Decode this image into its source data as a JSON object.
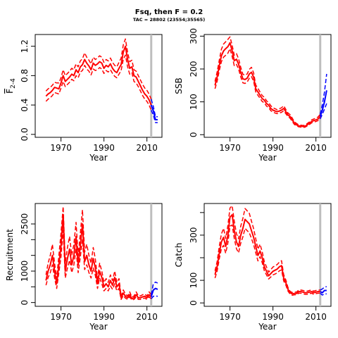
{
  "figure": {
    "title": "Fsq, then F = 0.2",
    "subtitle": "TAC = 28802 (23554;35565)"
  },
  "colors": {
    "historical": "#ff0000",
    "forecast": "#0000ff",
    "divider": "#bebebe"
  },
  "chart_data": [
    {
      "type": "line",
      "ylabel": "F",
      "ylabel_subscript": "2-4",
      "xlabel": "Year",
      "xlim": [
        1958,
        2017
      ],
      "ylim": [
        -0.04,
        1.36
      ],
      "xticks": [
        1970,
        1990,
        2010
      ],
      "yticks": [
        0.0,
        0.4,
        0.8,
        1.2
      ],
      "ytick_labels": [
        "0.0",
        "0.4",
        "0.8",
        "1.2"
      ],
      "divider_year": 2012,
      "series": [
        {
          "role": "historical",
          "x": [
            1963,
            1964,
            1965,
            1966,
            1967,
            1968,
            1969,
            1970,
            1971,
            1972,
            1973,
            1974,
            1975,
            1976,
            1977,
            1978,
            1979,
            1980,
            1981,
            1982,
            1983,
            1984,
            1985,
            1986,
            1987,
            1988,
            1989,
            1990,
            1991,
            1992,
            1993,
            1994,
            1995,
            1996,
            1997,
            1998,
            1999,
            2000,
            2001,
            2002,
            2003,
            2004,
            2005,
            2006,
            2007,
            2008,
            2009,
            2010,
            2011,
            2012
          ],
          "estimate": [
            0.52,
            0.55,
            0.57,
            0.6,
            0.64,
            0.63,
            0.62,
            0.7,
            0.8,
            0.72,
            0.75,
            0.78,
            0.82,
            0.8,
            0.88,
            0.84,
            0.92,
            0.95,
            1.02,
            0.97,
            0.93,
            0.88,
            0.97,
            0.94,
            0.96,
            0.99,
            0.97,
            0.9,
            0.94,
            0.92,
            0.96,
            0.9,
            0.86,
            0.84,
            0.9,
            0.95,
            1.12,
            1.2,
            1.02,
            0.9,
            0.92,
            0.8,
            0.78,
            0.72,
            0.66,
            0.6,
            0.55,
            0.52,
            0.47,
            0.4
          ],
          "lower": [
            0.45,
            0.48,
            0.5,
            0.53,
            0.57,
            0.56,
            0.55,
            0.63,
            0.72,
            0.65,
            0.68,
            0.71,
            0.75,
            0.73,
            0.8,
            0.77,
            0.85,
            0.87,
            0.94,
            0.89,
            0.86,
            0.81,
            0.89,
            0.87,
            0.88,
            0.91,
            0.89,
            0.83,
            0.87,
            0.85,
            0.88,
            0.83,
            0.79,
            0.77,
            0.82,
            0.87,
            1.02,
            1.08,
            0.92,
            0.82,
            0.84,
            0.72,
            0.7,
            0.65,
            0.59,
            0.53,
            0.48,
            0.45,
            0.4,
            0.33
          ],
          "upper": [
            0.59,
            0.62,
            0.64,
            0.67,
            0.71,
            0.7,
            0.7,
            0.77,
            0.88,
            0.8,
            0.83,
            0.86,
            0.9,
            0.88,
            0.96,
            0.92,
            1.0,
            1.03,
            1.11,
            1.05,
            1.01,
            0.96,
            1.05,
            1.02,
            1.04,
            1.07,
            1.05,
            0.98,
            1.02,
            1.0,
            1.04,
            0.98,
            0.94,
            0.92,
            0.98,
            1.04,
            1.22,
            1.3,
            1.12,
            0.99,
            1.01,
            0.88,
            0.86,
            0.8,
            0.74,
            0.68,
            0.63,
            0.6,
            0.55,
            0.48
          ]
        },
        {
          "role": "forecast",
          "x": [
            2012,
            2013,
            2014,
            2015
          ],
          "estimate": [
            0.4,
            0.32,
            0.2,
            0.2
          ],
          "lower": [
            0.33,
            0.26,
            0.16,
            0.16
          ],
          "upper": [
            0.48,
            0.38,
            0.24,
            0.24
          ]
        }
      ]
    },
    {
      "type": "line",
      "ylabel": "SSB",
      "xlabel": "Year",
      "xlim": [
        1958,
        2017
      ],
      "ylim": [
        -8,
        305
      ],
      "xticks": [
        1970,
        1990,
        2010
      ],
      "yticks": [
        0,
        100,
        200,
        300
      ],
      "ytick_labels": [
        "0",
        "100",
        "200",
        "300"
      ],
      "divider_year": 2012,
      "series": [
        {
          "role": "historical",
          "x": [
            1963,
            1964,
            1965,
            1966,
            1967,
            1968,
            1969,
            1970,
            1971,
            1972,
            1973,
            1974,
            1975,
            1976,
            1977,
            1978,
            1979,
            1980,
            1981,
            1982,
            1983,
            1984,
            1985,
            1986,
            1987,
            1988,
            1989,
            1990,
            1991,
            1992,
            1993,
            1994,
            1995,
            1996,
            1997,
            1998,
            1999,
            2000,
            2001,
            2002,
            2003,
            2004,
            2005,
            2006,
            2007,
            2008,
            2009,
            2010,
            2011,
            2012
          ],
          "estimate": [
            150,
            175,
            210,
            240,
            255,
            262,
            268,
            280,
            255,
            225,
            230,
            215,
            190,
            170,
            168,
            172,
            185,
            190,
            175,
            140,
            130,
            120,
            110,
            105,
            95,
            90,
            80,
            75,
            72,
            70,
            72,
            75,
            80,
            70,
            60,
            55,
            45,
            35,
            30,
            27,
            26,
            25,
            26,
            30,
            35,
            40,
            43,
            45,
            48,
            55
          ],
          "lower": [
            140,
            162,
            195,
            222,
            236,
            242,
            248,
            262,
            238,
            210,
            214,
            200,
            176,
            158,
            156,
            160,
            172,
            177,
            162,
            130,
            120,
            111,
            101,
            97,
            87,
            83,
            73,
            69,
            66,
            64,
            66,
            68,
            73,
            64,
            55,
            50,
            40,
            31,
            27,
            24,
            23,
            22,
            23,
            27,
            31,
            36,
            39,
            40,
            43,
            48
          ],
          "upper": [
            162,
            190,
            227,
            260,
            276,
            283,
            290,
            298,
            272,
            242,
            247,
            231,
            205,
            184,
            181,
            185,
            199,
            205,
            188,
            151,
            141,
            130,
            119,
            114,
            103,
            98,
            88,
            82,
            79,
            76,
            79,
            82,
            88,
            77,
            66,
            61,
            50,
            39,
            34,
            30,
            29,
            28,
            29,
            34,
            39,
            45,
            48,
            50,
            54,
            62
          ]
        },
        {
          "role": "forecast",
          "x": [
            2012,
            2013,
            2014,
            2015
          ],
          "estimate": [
            55,
            75,
            100,
            135
          ],
          "lower": [
            48,
            62,
            78,
            95
          ],
          "upper": [
            62,
            92,
            130,
            185
          ]
        }
      ]
    },
    {
      "type": "line",
      "ylabel": "Recruitment",
      "xlabel": "Year",
      "xlim": [
        1958,
        2017
      ],
      "ylim": [
        -120,
        3150
      ],
      "xticks": [
        1970,
        1990,
        2010
      ],
      "yticks": [
        0,
        1000,
        2500
      ],
      "ytick_labels": [
        "0",
        "1000",
        "2500"
      ],
      "ytick_minor": [
        500,
        1500,
        2000
      ],
      "divider_year": 2012,
      "series": [
        {
          "role": "historical",
          "x": [
            1963,
            1964,
            1965,
            1966,
            1967,
            1968,
            1969,
            1970,
            1971,
            1972,
            1973,
            1974,
            1975,
            1976,
            1977,
            1978,
            1979,
            1980,
            1981,
            1982,
            1983,
            1984,
            1985,
            1986,
            1987,
            1988,
            1989,
            1990,
            1991,
            1992,
            1993,
            1994,
            1995,
            1996,
            1997,
            1998,
            1999,
            2000,
            2001,
            2002,
            2003,
            2004,
            2005,
            2006,
            2007,
            2008,
            2009,
            2010,
            2011,
            2012
          ],
          "estimate": [
            700,
            1000,
            1200,
            1500,
            1000,
            600,
            1200,
            1800,
            2800,
            1000,
            1400,
            1700,
            1200,
            1500,
            2100,
            1200,
            1800,
            2500,
            1300,
            1500,
            1200,
            1000,
            1400,
            1100,
            600,
            1000,
            800,
            500,
            600,
            500,
            700,
            550,
            800,
            500,
            600,
            150,
            300,
            200,
            150,
            250,
            120,
            150,
            250,
            150,
            150,
            180,
            200,
            150,
            250,
            180
          ],
          "lower": [
            550,
            800,
            950,
            1200,
            780,
            450,
            950,
            1450,
            2300,
            780,
            1100,
            1350,
            950,
            1200,
            1700,
            950,
            1450,
            2000,
            1050,
            1200,
            950,
            780,
            1100,
            860,
            450,
            780,
            600,
            370,
            450,
            370,
            530,
            420,
            600,
            370,
            450,
            100,
            220,
            140,
            100,
            180,
            80,
            100,
            180,
            100,
            100,
            130,
            140,
            100,
            180,
            120
          ],
          "upper": [
            880,
            1250,
            1500,
            1850,
            1250,
            760,
            1500,
            2200,
            3050,
            1250,
            1750,
            2100,
            1500,
            1850,
            2550,
            1500,
            2200,
            2950,
            1600,
            1850,
            1500,
            1250,
            1750,
            1380,
            760,
            1250,
            1000,
            640,
            760,
            640,
            880,
            700,
            1000,
            640,
            760,
            210,
            400,
            270,
            210,
            340,
            170,
            210,
            340,
            210,
            210,
            250,
            270,
            210,
            340,
            250
          ]
        },
        {
          "role": "forecast",
          "x": [
            2012,
            2013,
            2014,
            2015
          ],
          "estimate": [
            180,
            400,
            450,
            420
          ],
          "lower": [
            120,
            200,
            210,
            200
          ],
          "upper": [
            250,
            600,
            650,
            620
          ]
        }
      ]
    },
    {
      "type": "line",
      "ylabel": "Catch",
      "xlabel": "Year",
      "xlim": [
        1958,
        2017
      ],
      "ylim": [
        -15,
        440
      ],
      "xticks": [
        1970,
        1990,
        2010
      ],
      "yticks": [
        0,
        100,
        300
      ],
      "ytick_labels": [
        "0",
        "100",
        "300"
      ],
      "ytick_minor": [
        200,
        400
      ],
      "divider_year": 2012,
      "series": [
        {
          "role": "historical",
          "x": [
            1963,
            1964,
            1965,
            1966,
            1967,
            1968,
            1969,
            1970,
            1971,
            1972,
            1973,
            1974,
            1975,
            1976,
            1977,
            1978,
            1979,
            1980,
            1981,
            1982,
            1983,
            1984,
            1985,
            1986,
            1987,
            1988,
            1989,
            1990,
            1991,
            1992,
            1993,
            1994,
            1995,
            1996,
            1997,
            1998,
            1999,
            2000,
            2001,
            2002,
            2003,
            2004,
            2005,
            2006,
            2007,
            2008,
            2009,
            2010,
            2011,
            2012
          ],
          "estimate": [
            125,
            160,
            220,
            270,
            290,
            250,
            300,
            380,
            390,
            320,
            270,
            250,
            300,
            330,
            370,
            360,
            350,
            320,
            290,
            250,
            210,
            230,
            200,
            160,
            140,
            120,
            130,
            140,
            145,
            150,
            160,
            165,
            110,
            90,
            60,
            45,
            40,
            42,
            42,
            50,
            50,
            48,
            45,
            45,
            48,
            50,
            45,
            48,
            50,
            50
          ],
          "lower": [
            110,
            140,
            195,
            240,
            255,
            220,
            265,
            340,
            345,
            285,
            240,
            222,
            265,
            292,
            330,
            320,
            310,
            285,
            258,
            222,
            186,
            205,
            178,
            142,
            124,
            106,
            115,
            124,
            128,
            133,
            142,
            146,
            97,
            79,
            52,
            39,
            34,
            36,
            36,
            43,
            43,
            41,
            38,
            38,
            41,
            43,
            38,
            41,
            43,
            43
          ],
          "upper": [
            142,
            182,
            250,
            305,
            330,
            285,
            342,
            420,
            430,
            362,
            306,
            284,
            340,
            374,
            418,
            408,
            396,
            362,
            328,
            284,
            238,
            260,
            226,
            182,
            159,
            136,
            147,
            159,
            164,
            170,
            181,
            187,
            125,
            102,
            68,
            51,
            46,
            48,
            48,
            57,
            57,
            55,
            52,
            52,
            55,
            57,
            52,
            55,
            57,
            57
          ]
        },
        {
          "role": "forecast",
          "x": [
            2012,
            2013,
            2014,
            2015
          ],
          "estimate": [
            50,
            45,
            55,
            55
          ],
          "lower": [
            43,
            35,
            40,
            40
          ],
          "upper": [
            57,
            62,
            70,
            72
          ]
        }
      ]
    }
  ]
}
